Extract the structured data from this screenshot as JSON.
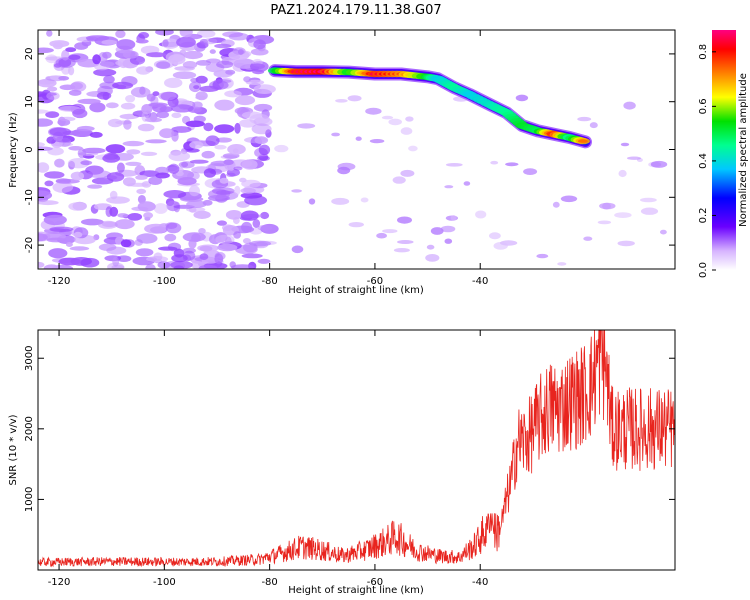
{
  "title": "PAZ1.2024.179.11.38.G07",
  "chart_data": [
    {
      "type": "heatmap",
      "xlabel": "Height of straight line (km)",
      "ylabel": "Frequency (Hz)",
      "xlim": [
        -124,
        -3
      ],
      "ylim": [
        -25,
        25
      ],
      "x_ticks": [
        -120,
        -100,
        -80,
        -60,
        -40
      ],
      "y_ticks": [
        -20,
        -10,
        0,
        10,
        20
      ],
      "colorbar": {
        "label": "Normalized spectral amplitude",
        "range": [
          0.0,
          0.88
        ],
        "ticks": [
          0.0,
          0.2,
          0.4,
          0.6,
          0.8
        ],
        "colormap": [
          "#ffffff",
          "#6a00ff",
          "#0000ff",
          "#00c8ff",
          "#00ff90",
          "#00e000",
          "#ffff00",
          "#ff8000",
          "#ff0000",
          "#ff0080"
        ]
      },
      "ridge": {
        "x": [
          -79,
          -75,
          -70,
          -65,
          -60,
          -55,
          -50,
          -48,
          -45,
          -42,
          -38,
          -35,
          -32,
          -29,
          -26,
          -23,
          -20
        ],
        "frequency": [
          16.5,
          16.3,
          16.3,
          16.2,
          15.8,
          15.8,
          15.2,
          14.8,
          13.0,
          11.5,
          9.3,
          7.7,
          5.0,
          3.9,
          3.2,
          2.5,
          1.6
        ],
        "amplitude": [
          0.45,
          0.85,
          0.9,
          0.5,
          0.85,
          0.75,
          0.5,
          0.3,
          0.4,
          0.3,
          0.35,
          0.4,
          0.5,
          0.45,
          0.85,
          0.4,
          0.8
        ]
      },
      "noise_region": {
        "x_range": [
          -124,
          -80
        ],
        "frequency_range": [
          -25,
          25
        ],
        "amplitude_range": [
          0.05,
          0.25
        ]
      }
    },
    {
      "type": "line",
      "xlabel": "Height of straight line (km)",
      "ylabel": "SNR (10 * v/v)",
      "xlim": [
        -124,
        -3
      ],
      "ylim": [
        0,
        3400
      ],
      "x_ticks": [
        -120,
        -100,
        -80,
        -60,
        -40
      ],
      "y_ticks": [
        1000,
        2000,
        3000
      ],
      "series": [
        {
          "color": "#e8241e",
          "x": [
            -124,
            -110,
            -100,
            -90,
            -82,
            -78,
            -74,
            -70,
            -66,
            -62,
            -58,
            -56,
            -52,
            -48,
            -44,
            -41,
            -39,
            -38,
            -37,
            -36,
            -35,
            -34,
            -33,
            -31,
            -29,
            -27,
            -25,
            -23,
            -21,
            -19,
            -18,
            -17,
            -16,
            -15
          ],
          "values": [
            110,
            120,
            115,
            120,
            150,
            230,
            330,
            280,
            200,
            280,
            400,
            480,
            270,
            200,
            180,
            350,
            560,
            750,
            520,
            650,
            1000,
            1300,
            1800,
            1850,
            2100,
            2300,
            2300,
            2400,
            2450,
            2600,
            2850,
            3100,
            2800,
            2000
          ]
        }
      ]
    }
  ]
}
